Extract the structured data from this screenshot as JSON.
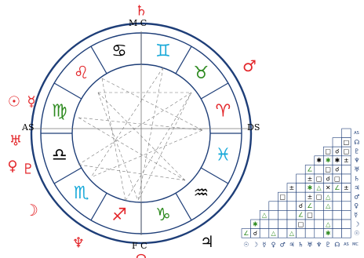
{
  "chart": {
    "angle_labels": {
      "mc": "M C",
      "ic": "F C",
      "asc": "AS",
      "dsc": "DS"
    },
    "signs": [
      {
        "name": "cancer",
        "glyph": "♋",
        "color": "#000000"
      },
      {
        "name": "gemini",
        "glyph": "♊",
        "color": "#18a9d9"
      },
      {
        "name": "taurus",
        "glyph": "♉",
        "color": "#2d8a1f"
      },
      {
        "name": "aries",
        "glyph": "♈",
        "color": "#e3262a"
      },
      {
        "name": "pisces",
        "glyph": "♓",
        "color": "#18a9d9"
      },
      {
        "name": "aquarius",
        "glyph": "♒",
        "color": "#000000"
      },
      {
        "name": "capricorn",
        "glyph": "♑",
        "color": "#2d8a1f"
      },
      {
        "name": "sagittarius",
        "glyph": "♐",
        "color": "#e3262a"
      },
      {
        "name": "scorpio",
        "glyph": "♏",
        "color": "#18a9d9"
      },
      {
        "name": "libra",
        "glyph": "♎",
        "color": "#000000"
      },
      {
        "name": "virgo",
        "glyph": "♍",
        "color": "#2d8a1f"
      },
      {
        "name": "leo",
        "glyph": "♌",
        "color": "#e3262a"
      }
    ],
    "planets": [
      {
        "name": "saturn",
        "glyph": "♄",
        "color": "#e3262a"
      },
      {
        "name": "mars",
        "glyph": "♂",
        "color": "#e3262a"
      },
      {
        "name": "sun",
        "glyph": "☉",
        "color": "#e3262a"
      },
      {
        "name": "mercury",
        "glyph": "☿",
        "color": "#e3262a"
      },
      {
        "name": "uranus",
        "glyph": "♅",
        "color": "#e3262a"
      },
      {
        "name": "venus",
        "glyph": "♀",
        "color": "#e3262a"
      },
      {
        "name": "pluto",
        "glyph": "♇",
        "color": "#e3262a"
      },
      {
        "name": "moon",
        "glyph": "☽",
        "color": "#e3262a"
      },
      {
        "name": "neptune",
        "glyph": "♆",
        "color": "#e3262a"
      },
      {
        "name": "jupiter",
        "glyph": "♃",
        "color": "#000000"
      },
      {
        "name": "node",
        "glyph": "☊",
        "color": "#e3262a"
      }
    ]
  },
  "aspect_grid": {
    "row_labels": [
      "AS",
      "☊",
      "♇",
      "♆",
      "♅",
      "♄",
      "♃",
      "♂",
      "♀",
      "☿",
      "☽",
      "☉"
    ],
    "column_labels": [
      "☉",
      "☽",
      "☿",
      "♀",
      "♂",
      "♃",
      "♄",
      "♅",
      "♆",
      "♇",
      "☊",
      "AS",
      "MC"
    ],
    "aspects": [
      {
        "row": 1,
        "col": 11,
        "glyph": "□",
        "color": "#000000"
      },
      {
        "row": 2,
        "col": 9,
        "glyph": "□",
        "color": "#000000"
      },
      {
        "row": 2,
        "col": 10,
        "glyph": "☌",
        "color": "#000000"
      },
      {
        "row": 2,
        "col": 11,
        "glyph": "□",
        "color": "#000000"
      },
      {
        "row": 3,
        "col": 8,
        "glyph": "✱",
        "color": "#000000"
      },
      {
        "row": 3,
        "col": 9,
        "glyph": "✱",
        "color": "#2d8a1f"
      },
      {
        "row": 3,
        "col": 10,
        "glyph": "✱",
        "color": "#000000"
      },
      {
        "row": 3,
        "col": 11,
        "glyph": "±",
        "color": "#000000"
      },
      {
        "row": 4,
        "col": 7,
        "glyph": "∠",
        "color": "#2d8a1f"
      },
      {
        "row": 4,
        "col": 9,
        "glyph": "□",
        "color": "#000000"
      },
      {
        "row": 4,
        "col": 10,
        "glyph": "☌",
        "color": "#000000"
      },
      {
        "row": 5,
        "col": 7,
        "glyph": "±",
        "color": "#000000"
      },
      {
        "row": 5,
        "col": 8,
        "glyph": "□",
        "color": "#000000"
      },
      {
        "row": 5,
        "col": 9,
        "glyph": "☌",
        "color": "#000000"
      },
      {
        "row": 5,
        "col": 10,
        "glyph": "□",
        "color": "#000000"
      },
      {
        "row": 6,
        "col": 5,
        "glyph": "±",
        "color": "#000000"
      },
      {
        "row": 6,
        "col": 7,
        "glyph": "✱",
        "color": "#2d8a1f"
      },
      {
        "row": 6,
        "col": 8,
        "glyph": "△",
        "color": "#2d8a1f"
      },
      {
        "row": 6,
        "col": 9,
        "glyph": "✕",
        "color": "#000000"
      },
      {
        "row": 6,
        "col": 10,
        "glyph": "∠",
        "color": "#2d8a1f"
      },
      {
        "row": 6,
        "col": 11,
        "glyph": "±",
        "color": "#000000"
      },
      {
        "row": 7,
        "col": 4,
        "glyph": "□",
        "color": "#000000"
      },
      {
        "row": 7,
        "col": 7,
        "glyph": "±",
        "color": "#000000"
      },
      {
        "row": 7,
        "col": 8,
        "glyph": "□",
        "color": "#000000"
      },
      {
        "row": 7,
        "col": 9,
        "glyph": "△",
        "color": "#2d8a1f"
      },
      {
        "row": 8,
        "col": 6,
        "glyph": "☌",
        "color": "#000000"
      },
      {
        "row": 8,
        "col": 7,
        "glyph": "∠",
        "color": "#2d8a1f"
      },
      {
        "row": 8,
        "col": 9,
        "glyph": "△",
        "color": "#2d8a1f"
      },
      {
        "row": 9,
        "col": 2,
        "glyph": "△",
        "color": "#2d8a1f"
      },
      {
        "row": 9,
        "col": 6,
        "glyph": "∠",
        "color": "#2d8a1f"
      },
      {
        "row": 9,
        "col": 7,
        "glyph": "□",
        "color": "#000000"
      },
      {
        "row": 10,
        "col": 1,
        "glyph": "✱",
        "color": "#2d8a1f"
      },
      {
        "row": 10,
        "col": 6,
        "glyph": "□",
        "color": "#000000"
      },
      {
        "row": 10,
        "col": 9,
        "glyph": "△",
        "color": "#2d8a1f"
      },
      {
        "row": 11,
        "col": 0,
        "glyph": "∠",
        "color": "#2d8a1f"
      },
      {
        "row": 11,
        "col": 1,
        "glyph": "☌",
        "color": "#000000"
      },
      {
        "row": 11,
        "col": 3,
        "glyph": "△",
        "color": "#2d8a1f"
      },
      {
        "row": 11,
        "col": 5,
        "glyph": "△",
        "color": "#2d8a1f"
      },
      {
        "row": 11,
        "col": 9,
        "glyph": "✱",
        "color": "#2d8a1f"
      }
    ]
  }
}
